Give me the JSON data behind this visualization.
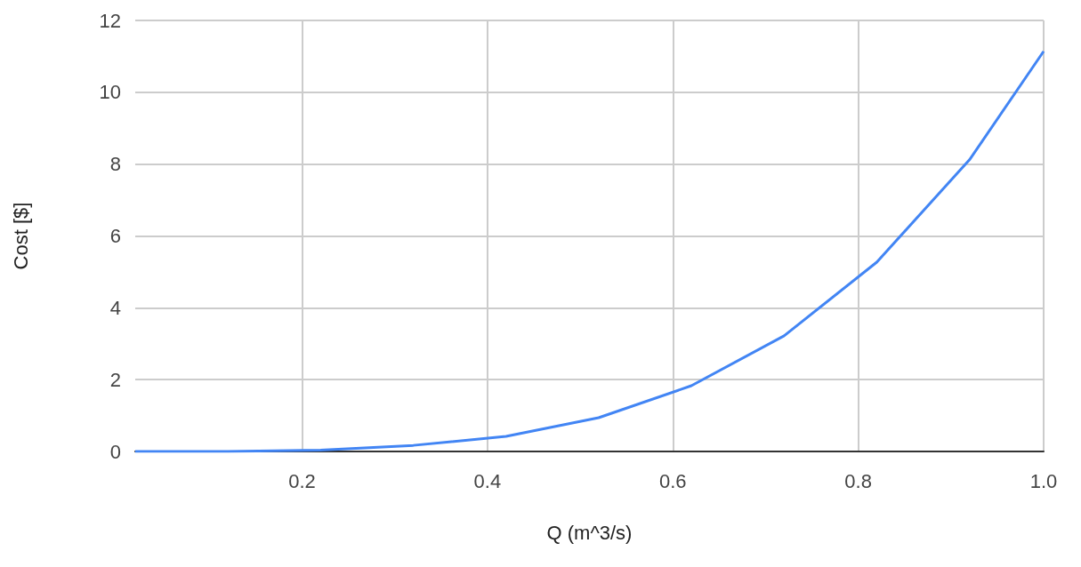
{
  "chart_data": {
    "type": "line",
    "xlabel": "Q (m^3/s)",
    "ylabel": "Cost [$]",
    "x": [
      0.02,
      0.12,
      0.22,
      0.32,
      0.42,
      0.52,
      0.62,
      0.72,
      0.82,
      0.92,
      1.0
    ],
    "series": [
      {
        "color": "#4285f4",
        "values": [
          0,
          0,
          0.04,
          0.17,
          0.42,
          0.94,
          1.83,
          3.22,
          5.27,
          8.12,
          11.14
        ]
      }
    ],
    "xlim": [
      0.02,
      1.0
    ],
    "xticks": [
      0.2,
      0.4,
      0.6,
      0.8,
      {
        "value": 1.0,
        "label": "1.0"
      }
    ],
    "ylim": [
      0,
      12
    ],
    "yticks": [
      0,
      2,
      4,
      6,
      8,
      10,
      12
    ],
    "grid": true,
    "marker": "none",
    "line_style": "solid"
  }
}
